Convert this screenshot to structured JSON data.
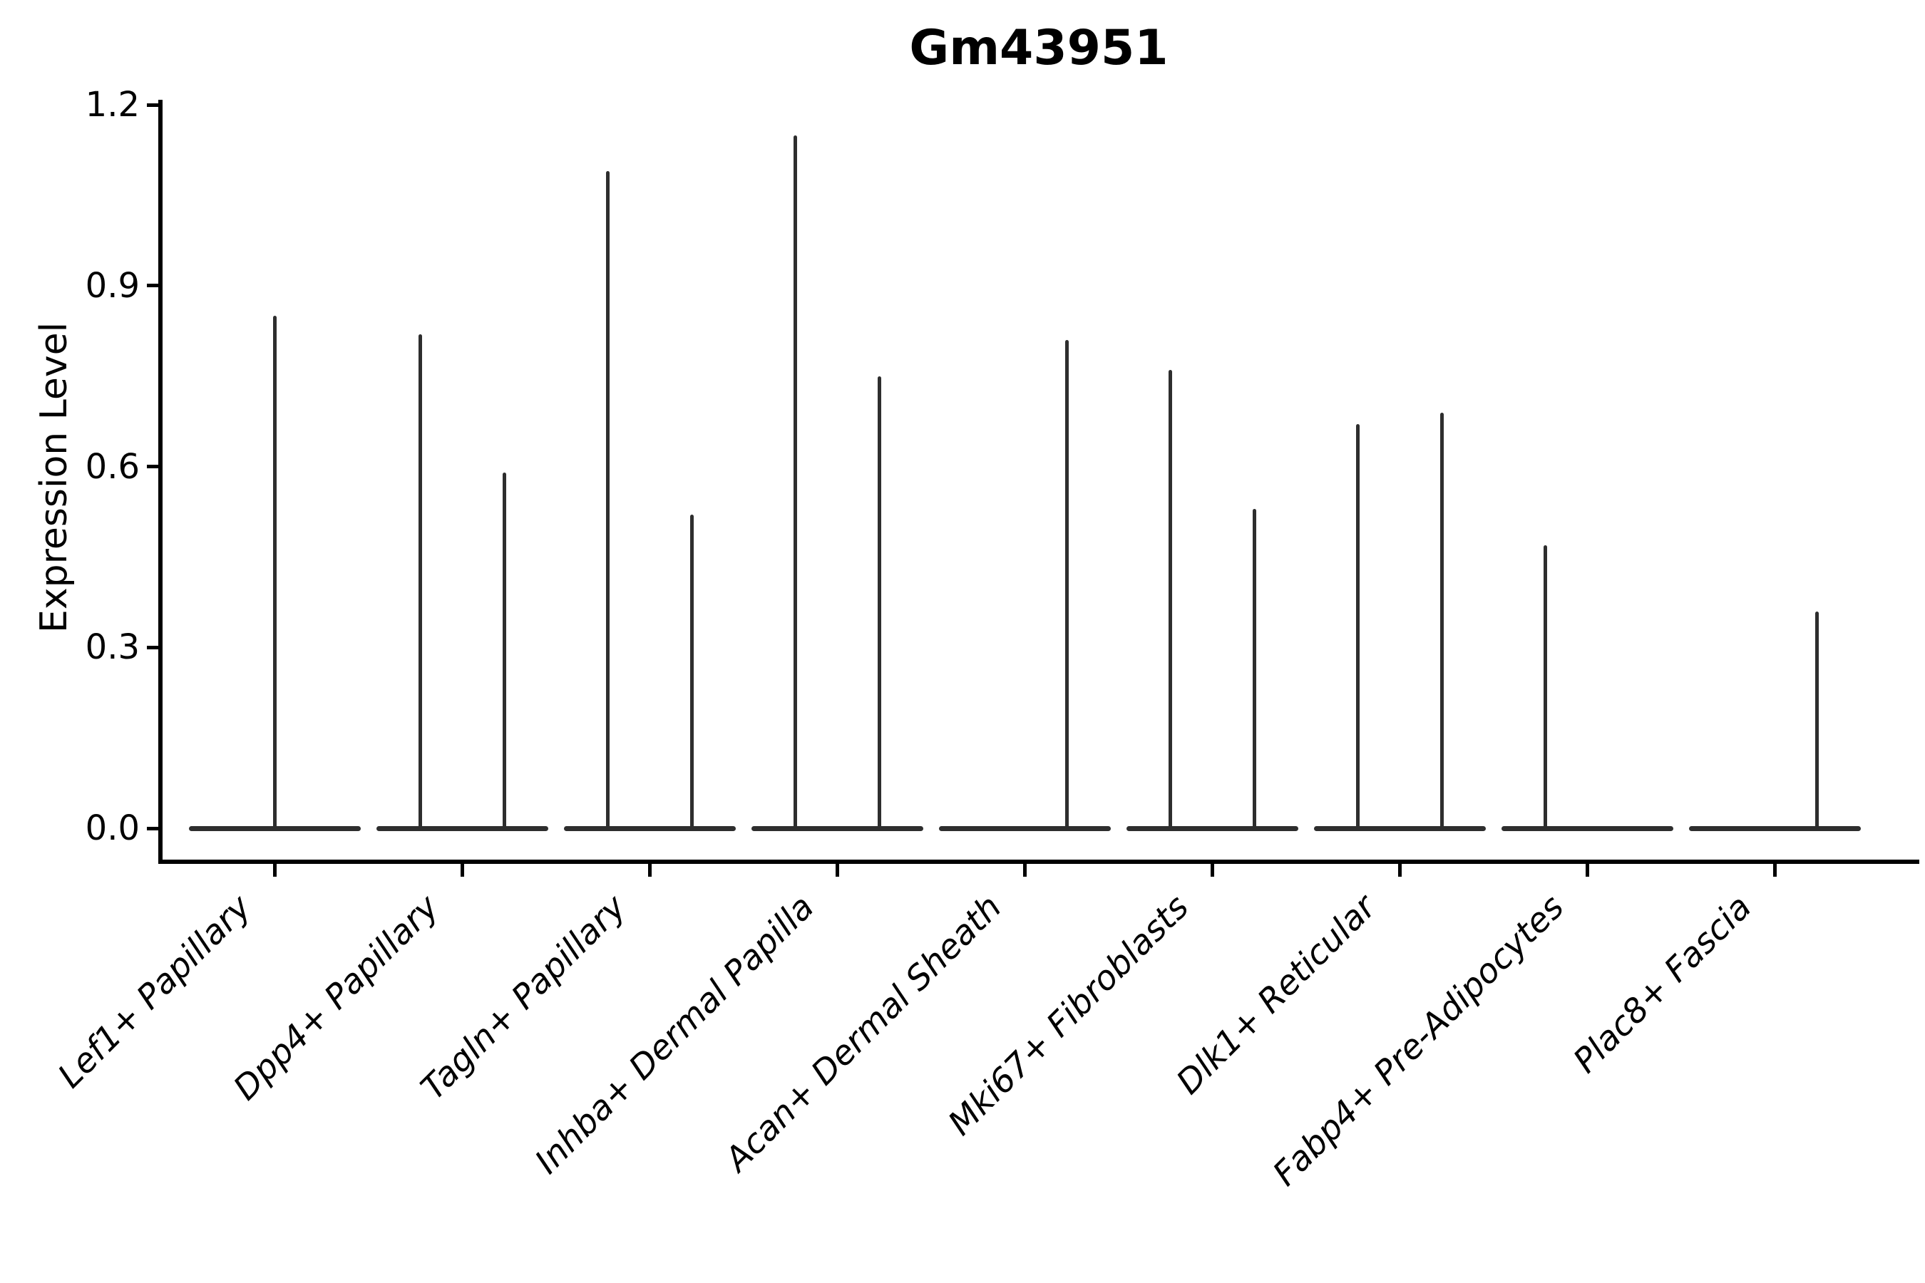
{
  "chart_data": {
    "type": "violin",
    "title": "Gm43951",
    "ylabel": "Expression Level",
    "xlabel": "",
    "ylim": [
      0,
      1.2
    ],
    "yticks": [
      0.0,
      0.3,
      0.6,
      0.9,
      1.2
    ],
    "ytick_labels": [
      "0.0",
      "0.3",
      "0.6",
      "0.9",
      "1.2"
    ],
    "categories": [
      "Lef1+ Papillary",
      "Dpp4+ Papillary",
      "Tagln+ Papillary",
      "Inhba+ Dermal Papilla",
      "Acan+ Dermal Sheath",
      "Mki67+ Fibroblasts",
      "Dlk1+ Reticular",
      "Fabp4+ Pre-Adipocytes",
      "Plac8+ Fascia"
    ],
    "violins": [
      {
        "category": "Lef1+ Papillary",
        "spikes": [
          {
            "position": "center",
            "max": 0.85
          }
        ]
      },
      {
        "category": "Dpp4+ Papillary",
        "spikes": [
          {
            "position": "left",
            "max": 0.82
          },
          {
            "position": "right",
            "max": 0.59
          }
        ]
      },
      {
        "category": "Tagln+ Papillary",
        "spikes": [
          {
            "position": "left",
            "max": 1.09
          },
          {
            "position": "right",
            "max": 0.52
          }
        ]
      },
      {
        "category": "Inhba+ Dermal Papilla",
        "spikes": [
          {
            "position": "left",
            "max": 1.15
          },
          {
            "position": "right",
            "max": 0.75
          }
        ]
      },
      {
        "category": "Acan+ Dermal Sheath",
        "spikes": [
          {
            "position": "right",
            "max": 0.81
          }
        ]
      },
      {
        "category": "Mki67+ Fibroblasts",
        "spikes": [
          {
            "position": "left",
            "max": 0.76
          },
          {
            "position": "right",
            "max": 0.53
          }
        ]
      },
      {
        "category": "Dlk1+ Reticular",
        "spikes": [
          {
            "position": "left",
            "max": 0.67
          },
          {
            "position": "right",
            "max": 0.69
          }
        ]
      },
      {
        "category": "Fabp4+ Pre-Adipocytes",
        "spikes": [
          {
            "position": "left",
            "max": 0.47
          }
        ]
      },
      {
        "category": "Plac8+ Fascia",
        "spikes": [
          {
            "position": "right",
            "max": 0.36
          }
        ]
      }
    ],
    "grid": false,
    "legend": null,
    "colors": {
      "violin": "#2e2e2e",
      "axis_and_text": "#000000",
      "background": "#ffffff"
    }
  }
}
